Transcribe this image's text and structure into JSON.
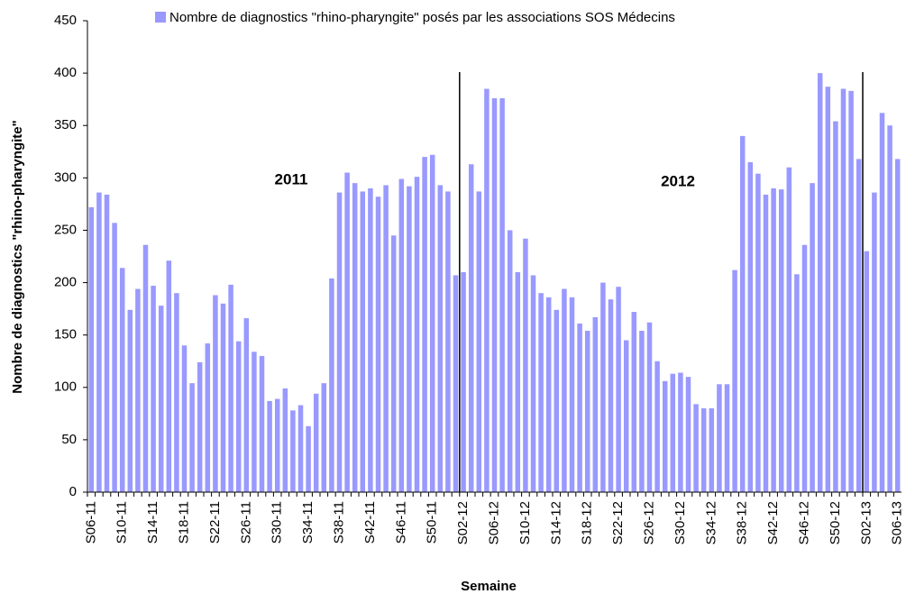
{
  "chart_data": {
    "type": "bar",
    "x_label": "Semaine",
    "y_label": "Nombre de diagnostics \"rhino-pharyngite\"",
    "annotations": [
      "2011",
      "2012"
    ],
    "categories": [
      "S06-11",
      null,
      null,
      null,
      "S10-11",
      null,
      null,
      null,
      "S14-11",
      null,
      null,
      null,
      "S18-11",
      null,
      null,
      null,
      "S22-11",
      null,
      null,
      null,
      "S26-11",
      null,
      null,
      null,
      "S30-11",
      null,
      null,
      null,
      "S34-11",
      null,
      null,
      null,
      "S38-11",
      null,
      null,
      null,
      "S42-11",
      null,
      null,
      null,
      "S46-11",
      null,
      null,
      null,
      "S50-11",
      null,
      null,
      null,
      "S02-12",
      null,
      null,
      null,
      "S06-12",
      null,
      null,
      null,
      "S10-12",
      null,
      null,
      null,
      "S14-12",
      null,
      null,
      null,
      "S18-12",
      null,
      null,
      null,
      "S22-12",
      null,
      null,
      null,
      "S26-12",
      null,
      null,
      null,
      "S30-12",
      null,
      null,
      null,
      "S34-12",
      null,
      null,
      null,
      "S38-12",
      null,
      null,
      null,
      "S42-12",
      null,
      null,
      null,
      "S46-12",
      null,
      null,
      null,
      "S50-12",
      null,
      null,
      null,
      "S02-13",
      null,
      null,
      null,
      "S06-13"
    ],
    "series": [
      {
        "name": "Nombre de diagnostics \"rhino-pharyngite\" posés par les associations SOS Médecins",
        "color": "#9999ff",
        "values": [
          272,
          286,
          284,
          257,
          214,
          174,
          194,
          236,
          197,
          178,
          221,
          190,
          140,
          104,
          124,
          142,
          188,
          180,
          198,
          144,
          166,
          134,
          130,
          87,
          89,
          99,
          78,
          83,
          63,
          94,
          104,
          204,
          286,
          305,
          295,
          287,
          290,
          282,
          293,
          245,
          299,
          292,
          301,
          320,
          322,
          293,
          287,
          207,
          210,
          313,
          287,
          385,
          376,
          376,
          250,
          210,
          242,
          207,
          190,
          186,
          174,
          194,
          186,
          161,
          154,
          167,
          200,
          184,
          196,
          145,
          172,
          154,
          162,
          125,
          106,
          113,
          114,
          110,
          84,
          80,
          80,
          103,
          103,
          212,
          340,
          315,
          304,
          284,
          290,
          289,
          310,
          208,
          236,
          295,
          400,
          387,
          354,
          385,
          383,
          318,
          230,
          286,
          362,
          350,
          318
        ]
      }
    ],
    "ylim": [
      0,
      450
    ],
    "yticks": [
      0,
      50,
      100,
      150,
      200,
      250,
      300,
      350,
      400,
      450
    ]
  }
}
